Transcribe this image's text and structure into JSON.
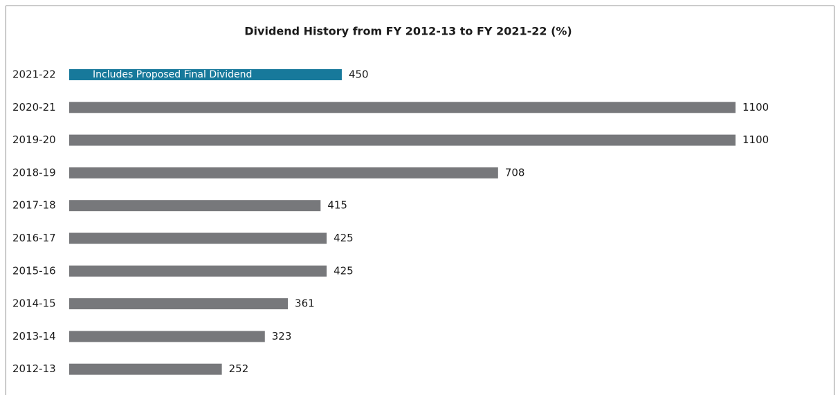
{
  "chart_data": {
    "type": "bar",
    "orientation": "horizontal",
    "title": "Dividend History from FY 2012-13 to FY 2021-22 (%)",
    "categories": [
      "2021-22",
      "2020-21",
      "2019-20",
      "2018-19",
      "2017-18",
      "2016-17",
      "2015-16",
      "2014-15",
      "2013-14",
      "2012-13"
    ],
    "values": [
      450,
      1100,
      1100,
      708,
      415,
      425,
      425,
      361,
      323,
      252
    ],
    "colors": [
      "#17799b",
      "#77787b",
      "#77787b",
      "#77787b",
      "#77787b",
      "#77787b",
      "#77787b",
      "#77787b",
      "#77787b",
      "#77787b"
    ],
    "annotation": "Includes Proposed Final Dividend"
  }
}
